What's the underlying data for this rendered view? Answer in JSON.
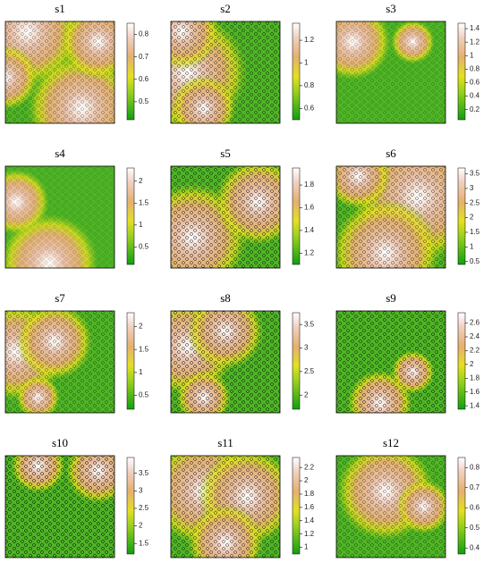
{
  "chart_data": [
    {
      "type": "heatmap",
      "title": "s1",
      "ylim": [
        0.42,
        0.85
      ],
      "yticks": [
        0.5,
        0.6,
        0.7,
        0.8
      ]
    },
    {
      "type": "heatmap",
      "title": "s2",
      "ylim": [
        0.5,
        1.35
      ],
      "yticks": [
        0.6,
        0.8,
        1,
        1.2
      ]
    },
    {
      "type": "heatmap",
      "title": "s3",
      "ylim": [
        0.05,
        1.48
      ],
      "yticks": [
        0.2,
        0.4,
        0.6,
        0.8,
        1,
        1.2,
        1.4
      ]
    },
    {
      "type": "heatmap",
      "title": "s4",
      "ylim": [
        0.1,
        2.3
      ],
      "yticks": [
        0.5,
        1,
        1.5,
        2
      ]
    },
    {
      "type": "heatmap",
      "title": "s5",
      "ylim": [
        1.1,
        1.95
      ],
      "yticks": [
        1.2,
        1.4,
        1.6,
        1.8
      ]
    },
    {
      "type": "heatmap",
      "title": "s6",
      "ylim": [
        0.4,
        3.7
      ],
      "yticks": [
        0.5,
        1,
        1.5,
        2,
        2.5,
        3,
        3.5
      ]
    },
    {
      "type": "heatmap",
      "title": "s7",
      "ylim": [
        0.2,
        2.3
      ],
      "yticks": [
        0.5,
        1,
        1.5,
        2
      ]
    },
    {
      "type": "heatmap",
      "title": "s8",
      "ylim": [
        1.7,
        3.75
      ],
      "yticks": [
        2,
        2.5,
        3,
        3.5
      ]
    },
    {
      "type": "heatmap",
      "title": "s9",
      "ylim": [
        1.35,
        2.75
      ],
      "yticks": [
        1.4,
        1.6,
        1.8,
        2,
        2.2,
        2.4,
        2.6
      ]
    },
    {
      "type": "heatmap",
      "title": "s10",
      "ylim": [
        1.2,
        3.95
      ],
      "yticks": [
        1.5,
        2,
        2.5,
        3,
        3.5
      ]
    },
    {
      "type": "heatmap",
      "title": "s11",
      "ylim": [
        0.9,
        2.35
      ],
      "yticks": [
        1,
        1.2,
        1.4,
        1.6,
        1.8,
        2,
        2.2
      ]
    },
    {
      "type": "heatmap",
      "title": "s12",
      "ylim": [
        0.37,
        0.85
      ],
      "yticks": [
        0.4,
        0.5,
        0.6,
        0.7,
        0.8
      ]
    }
  ]
}
